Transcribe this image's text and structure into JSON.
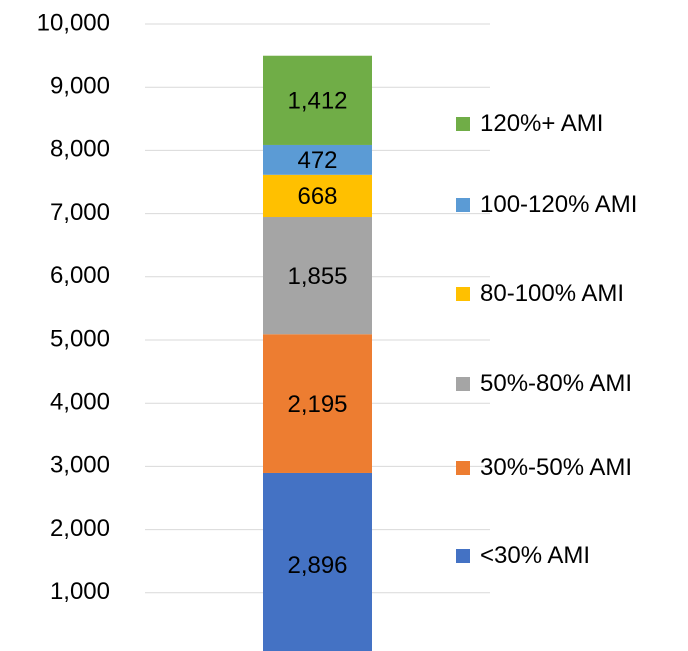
{
  "chart_data": {
    "type": "stacked_bar",
    "categories": [
      null
    ],
    "series": [
      {
        "name": "<30% AMI",
        "color": "#4472c4",
        "values": [
          2896
        ],
        "value_labels": [
          "2,896"
        ]
      },
      {
        "name": "30%-50% AMI",
        "color": "#ed7d31",
        "values": [
          2195
        ],
        "value_labels": [
          "2,195"
        ]
      },
      {
        "name": "50%-80% AMI",
        "color": "#a5a5a5",
        "values": [
          1855
        ],
        "value_labels": [
          "1,855"
        ]
      },
      {
        "name": "80-100% AMI",
        "color": "#ffc000",
        "values": [
          668
        ],
        "value_labels": [
          "668"
        ]
      },
      {
        "name": "100-120% AMI",
        "color": "#5b9bd5",
        "values": [
          472
        ],
        "value_labels": [
          "472"
        ]
      },
      {
        "name": "120%+ AMI",
        "color": "#70ad47",
        "values": [
          1412
        ],
        "value_labels": [
          "1,412"
        ]
      }
    ],
    "ylim": [
      0,
      10000
    ],
    "yticks": [
      {
        "value": 1000,
        "label": "1,000"
      },
      {
        "value": 2000,
        "label": "2,000"
      },
      {
        "value": 3000,
        "label": "3,000"
      },
      {
        "value": 4000,
        "label": "4,000"
      },
      {
        "value": 5000,
        "label": "5,000"
      },
      {
        "value": 6000,
        "label": "6,000"
      },
      {
        "value": 7000,
        "label": "7,000"
      },
      {
        "value": 8000,
        "label": "8,000"
      },
      {
        "value": 9000,
        "label": "9,000"
      },
      {
        "value": 10000,
        "label": "10,000"
      }
    ],
    "grid": true
  }
}
